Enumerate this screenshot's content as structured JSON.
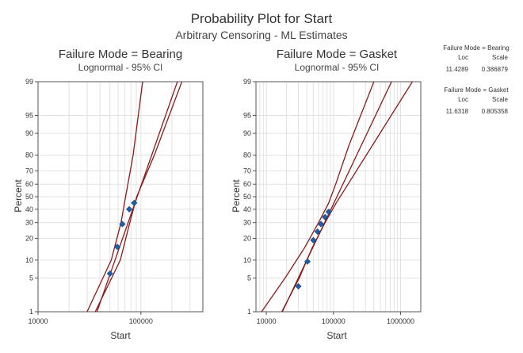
{
  "figure": {
    "title": "Probability Plot for Start",
    "subtitle": "Arbitrary Censoring - ML Estimates"
  },
  "colors": {
    "point": "#1f5fa8",
    "line": "#8b1a1a",
    "grid": "#e2e2e2",
    "text": "#333333"
  },
  "chart_data": [
    {
      "type": "scatter",
      "title": "Failure Mode = Bearing",
      "subtitle": "Lognormal - 95% CI",
      "xlabel": "Start",
      "ylabel": "Percent",
      "x_scale": "log",
      "y_scale": "normal-probability",
      "xlim": [
        10000,
        400000
      ],
      "x_ticks": [
        10000,
        100000
      ],
      "x_tick_labels": [
        "10000",
        "100000"
      ],
      "y_ticks": [
        1,
        5,
        10,
        20,
        30,
        40,
        50,
        60,
        70,
        80,
        90,
        95,
        99
      ],
      "y_tick_labels": [
        "1",
        "5",
        "10",
        "20",
        "30",
        "40",
        "50",
        "60",
        "70",
        "80",
        "90",
        "95",
        "99"
      ],
      "grid": true,
      "fit": {
        "loc": 11.4289,
        "scale": 0.386879
      },
      "ci_upper": [
        [
          30000,
          1
        ],
        [
          51500,
          10
        ],
        [
          64000,
          30
        ],
        [
          71000,
          50
        ],
        [
          84000,
          80
        ],
        [
          104000,
          99
        ]
      ],
      "ci_lower": [
        [
          36000,
          1
        ],
        [
          63000,
          10
        ],
        [
          78000,
          30
        ],
        [
          91000,
          50
        ],
        [
          135000,
          80
        ],
        [
          250000,
          99
        ]
      ],
      "points": [
        {
          "x": 50000,
          "y": 6
        },
        {
          "x": 59000,
          "y": 15.5
        },
        {
          "x": 66000,
          "y": 29
        },
        {
          "x": 77000,
          "y": 40
        },
        {
          "x": 86000,
          "y": 45
        }
      ],
      "stats": {
        "label": "Failure Mode = Bearing",
        "loc_header": "Loc",
        "scale_header": "Scale",
        "loc": "11.4289",
        "scale": "0.386879"
      }
    },
    {
      "type": "scatter",
      "title": "Failure Mode = Gasket",
      "subtitle": "Lognormal - 95% CI",
      "xlabel": "Start",
      "ylabel": "Percent",
      "x_scale": "log",
      "y_scale": "normal-probability",
      "xlim": [
        7000,
        2000000
      ],
      "x_ticks": [
        10000,
        100000,
        1000000
      ],
      "x_tick_labels": [
        "10000",
        "100000",
        "1000000"
      ],
      "y_ticks": [
        1,
        5,
        10,
        20,
        30,
        40,
        50,
        60,
        70,
        80,
        90,
        95,
        99
      ],
      "y_tick_labels": [
        "1",
        "5",
        "10",
        "20",
        "30",
        "40",
        "50",
        "60",
        "70",
        "80",
        "90",
        "95",
        "99"
      ],
      "grid": true,
      "fit": {
        "loc": 11.6318,
        "scale": 0.805358
      },
      "ci_upper": [
        [
          8500,
          1
        ],
        [
          19000,
          5
        ],
        [
          37000,
          15
        ],
        [
          60000,
          30
        ],
        [
          85000,
          45
        ],
        [
          108000,
          60
        ],
        [
          170000,
          85
        ],
        [
          400000,
          99
        ]
      ],
      "ci_lower": [
        [
          17000,
          1
        ],
        [
          31000,
          5
        ],
        [
          48000,
          15
        ],
        [
          75000,
          30
        ],
        [
          110000,
          45
        ],
        [
          165000,
          60
        ],
        [
          380000,
          85
        ],
        [
          1500000,
          99
        ]
      ],
      "points": [
        {
          "x": 30000,
          "y": 3.5
        },
        {
          "x": 41000,
          "y": 9.5
        },
        {
          "x": 50000,
          "y": 19
        },
        {
          "x": 58000,
          "y": 24
        },
        {
          "x": 65000,
          "y": 29
        },
        {
          "x": 75000,
          "y": 34
        },
        {
          "x": 85000,
          "y": 38
        }
      ],
      "stats": {
        "label": "Failure Mode = Gasket",
        "loc_header": "Loc",
        "scale_header": "Scale",
        "loc": "11.6318",
        "scale": "0.805358"
      }
    }
  ]
}
